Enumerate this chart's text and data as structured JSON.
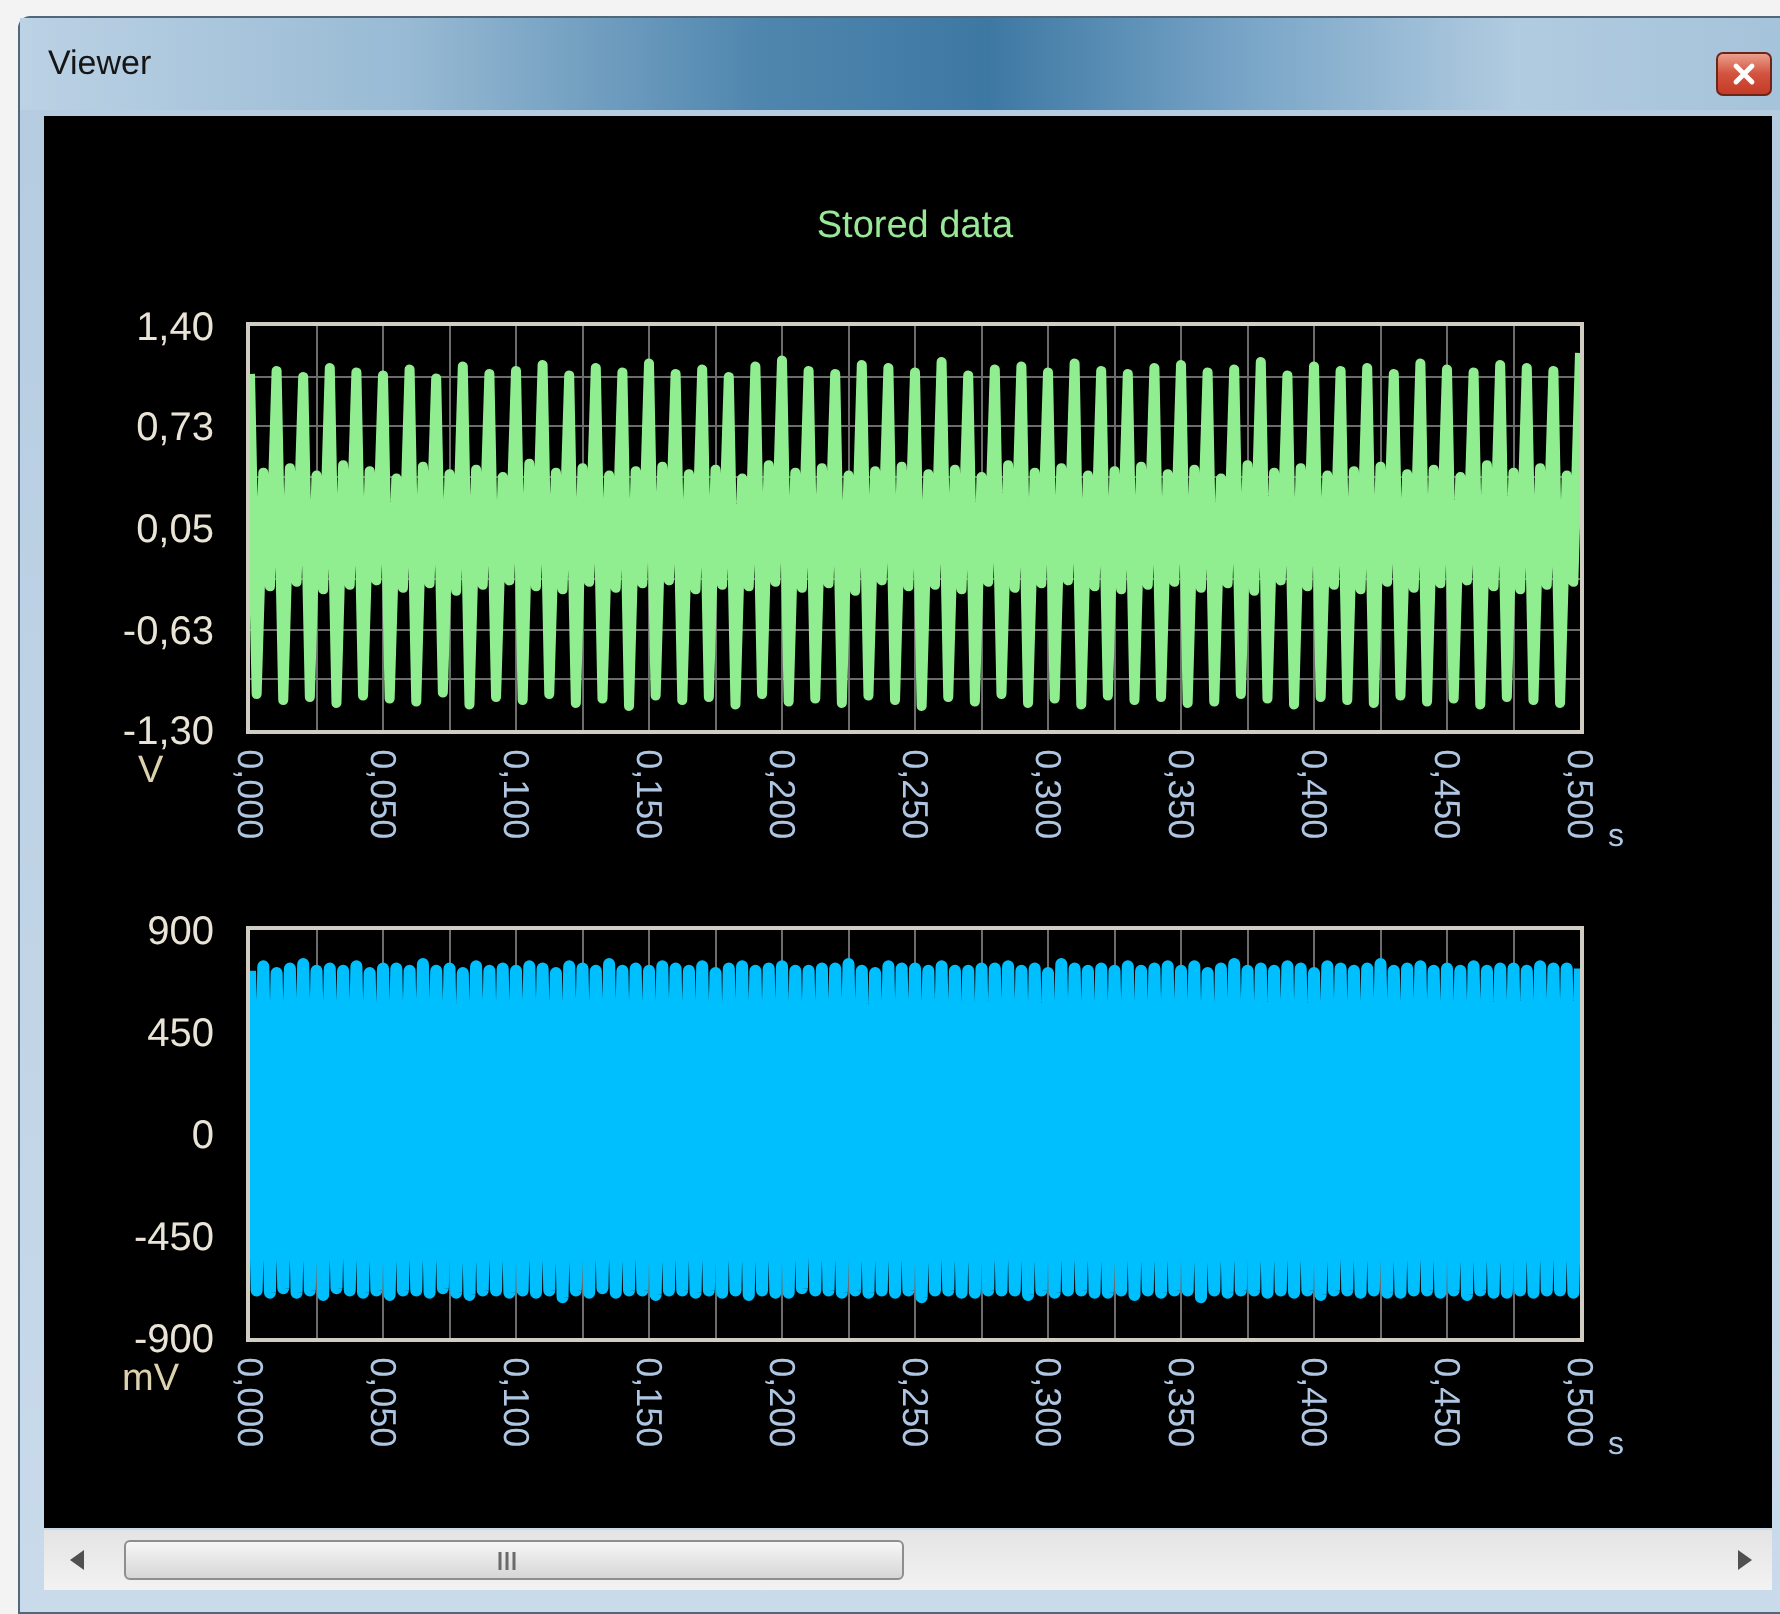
{
  "chart_data": [
    {
      "type": "line",
      "title": "Stored data",
      "annotations": [
        "Viewer"
      ],
      "xlabel": "s",
      "ylabel": "V",
      "grid": true,
      "xlim": [
        0,
        0.5
      ],
      "ylim": [
        -1.3,
        1.4
      ],
      "xticks": [
        {
          "value": 0,
          "label": "0,000"
        },
        {
          "value": 0.025,
          "label": null
        },
        {
          "value": 0.05,
          "label": "0,050"
        },
        {
          "value": 0.075,
          "label": null
        },
        {
          "value": 0.1,
          "label": "0,100"
        },
        {
          "value": 0.125,
          "label": null
        },
        {
          "value": 0.15,
          "label": "0,150"
        },
        {
          "value": 0.175,
          "label": null
        },
        {
          "value": 0.2,
          "label": "0,200"
        },
        {
          "value": 0.225,
          "label": null
        },
        {
          "value": 0.25,
          "label": "0,250"
        },
        {
          "value": 0.275,
          "label": null
        },
        {
          "value": 0.3,
          "label": "0,300"
        },
        {
          "value": 0.325,
          "label": null
        },
        {
          "value": 0.35,
          "label": "0,350"
        },
        {
          "value": 0.375,
          "label": null
        },
        {
          "value": 0.4,
          "label": "0,400"
        },
        {
          "value": 0.425,
          "label": null
        },
        {
          "value": 0.45,
          "label": "0,450"
        },
        {
          "value": 0.475,
          "label": null
        },
        {
          "value": 0.5,
          "label": "0,500"
        }
      ],
      "yticks": [
        {
          "value": 1.4,
          "label": "1,40"
        },
        {
          "value": 1.06,
          "label": null
        },
        {
          "value": 0.73,
          "label": "0,73"
        },
        {
          "value": 0.39,
          "label": null
        },
        {
          "value": 0.05,
          "label": "0,05"
        },
        {
          "value": -0.29,
          "label": null
        },
        {
          "value": -0.63,
          "label": "-0,63"
        },
        {
          "value": -0.96,
          "label": null
        },
        {
          "value": -1.3,
          "label": "-1,30"
        }
      ],
      "x": [
        0,
        0.0025,
        0.005,
        0.0075,
        0.01,
        0.0125,
        0.015,
        0.0175,
        0.02,
        0.0225,
        0.025,
        0.0275,
        0.03,
        0.0325,
        0.035,
        0.0375,
        0.04,
        0.0425,
        0.045,
        0.0475,
        0.05,
        0.0525,
        0.055,
        0.0575,
        0.06,
        0.0625,
        0.065,
        0.0675,
        0.07,
        0.0725,
        0.075,
        0.0775,
        0.08,
        0.0825,
        0.085,
        0.0875,
        0.09,
        0.0925,
        0.095,
        0.0975,
        0.1,
        0.1025,
        0.105,
        0.1075,
        0.11,
        0.1125,
        0.115,
        0.1175,
        0.12,
        0.1225,
        0.125,
        0.1275,
        0.13,
        0.1325,
        0.135,
        0.1375,
        0.14,
        0.1425,
        0.145,
        0.1475,
        0.15,
        0.1525,
        0.155,
        0.1575,
        0.16,
        0.1625,
        0.165,
        0.1675,
        0.17,
        0.1725,
        0.175,
        0.1775,
        0.18,
        0.1825,
        0.185,
        0.1875,
        0.19,
        0.1925,
        0.195,
        0.1975,
        0.2,
        0.2025,
        0.205,
        0.2075,
        0.21,
        0.2125,
        0.215,
        0.2175,
        0.22,
        0.2225,
        0.225,
        0.2275,
        0.23,
        0.2325,
        0.235,
        0.2375,
        0.24,
        0.2425,
        0.245,
        0.2475,
        0.25,
        0.2525,
        0.255,
        0.2575,
        0.26,
        0.2625,
        0.265,
        0.2675,
        0.27,
        0.2725,
        0.275,
        0.2775,
        0.28,
        0.2825,
        0.285,
        0.2875,
        0.29,
        0.2925,
        0.295,
        0.2975,
        0.3,
        0.3025,
        0.305,
        0.3075,
        0.31,
        0.3125,
        0.315,
        0.3175,
        0.32,
        0.3225,
        0.325,
        0.3275,
        0.33,
        0.3325,
        0.335,
        0.3375,
        0.34,
        0.3425,
        0.345,
        0.3475,
        0.35,
        0.3525,
        0.355,
        0.3575,
        0.36,
        0.3625,
        0.365,
        0.3675,
        0.37,
        0.3725,
        0.375,
        0.3775,
        0.38,
        0.3825,
        0.385,
        0.3875,
        0.39,
        0.3925,
        0.395,
        0.3975,
        0.4,
        0.4025,
        0.405,
        0.4075,
        0.41,
        0.4125,
        0.415,
        0.4175,
        0.42,
        0.4225,
        0.425,
        0.4275,
        0.43,
        0.4325,
        0.435,
        0.4375,
        0.44,
        0.4425,
        0.445,
        0.4475,
        0.45,
        0.4525,
        0.455,
        0.4575,
        0.46,
        0.4625,
        0.465,
        0.4675,
        0.47,
        0.4725,
        0.475,
        0.4775,
        0.48,
        0.4825,
        0.485,
        0.4875,
        0.49,
        0.4925,
        0.495,
        0.4975,
        0.5
      ],
      "series": [
        {
          "color": "#90ee90",
          "values": [
            1.08,
            -1.06,
            0.42,
            -0.34,
            1.1,
            -1.1,
            0.45,
            -0.31,
            1.06,
            -1.08,
            0.4,
            -0.36,
            1.12,
            -1.12,
            0.47,
            -0.33,
            1.09,
            -1.07,
            0.43,
            -0.3,
            1.07,
            -1.09,
            0.38,
            -0.35,
            1.11,
            -1.11,
            0.46,
            -0.32,
            1.05,
            -1.05,
            0.41,
            -0.37,
            1.13,
            -1.13,
            0.44,
            -0.33,
            1.08,
            -1.08,
            0.39,
            -0.3,
            1.1,
            -1.1,
            0.48,
            -0.34,
            1.14,
            -1.06,
            0.42,
            -0.36,
            1.07,
            -1.12,
            0.45,
            -0.31,
            1.12,
            -1.09,
            0.4,
            -0.35,
            1.09,
            -1.14,
            0.43,
            -0.32,
            1.15,
            -1.07,
            0.46,
            -0.3,
            1.08,
            -1.1,
            0.41,
            -0.36,
            1.11,
            -1.08,
            0.44,
            -0.33,
            1.06,
            -1.13,
            0.38,
            -0.34,
            1.13,
            -1.06,
            0.47,
            -0.31,
            1.17,
            -1.11,
            0.42,
            -0.35,
            1.1,
            -1.09,
            0.45,
            -0.32,
            1.08,
            -1.12,
            0.4,
            -0.37,
            1.14,
            -1.07,
            0.43,
            -0.3,
            1.12,
            -1.1,
            0.46,
            -0.34,
            1.09,
            -1.14,
            0.41,
            -0.33,
            1.16,
            -1.08,
            0.44,
            -0.36,
            1.07,
            -1.11,
            0.39,
            -0.31,
            1.11,
            -1.06,
            0.47,
            -0.35,
            1.13,
            -1.12,
            0.42,
            -0.32,
            1.09,
            -1.09,
            0.45,
            -0.3,
            1.15,
            -1.13,
            0.4,
            -0.34,
            1.1,
            -1.07,
            0.43,
            -0.36,
            1.08,
            -1.1,
            0.46,
            -0.33,
            1.12,
            -1.08,
            0.41,
            -0.31,
            1.14,
            -1.12,
            0.44,
            -0.35,
            1.09,
            -1.11,
            0.38,
            -0.32,
            1.11,
            -1.06,
            0.47,
            -0.37,
            1.16,
            -1.09,
            0.42,
            -0.3,
            1.07,
            -1.13,
            0.45,
            -0.34,
            1.13,
            -1.08,
            0.4,
            -0.33,
            1.1,
            -1.1,
            0.43,
            -0.36,
            1.12,
            -1.12,
            0.46,
            -0.31,
            1.08,
            -1.07,
            0.41,
            -0.35,
            1.15,
            -1.11,
            0.44,
            -0.32,
            1.11,
            -1.09,
            0.39,
            -0.3,
            1.09,
            -1.13,
            0.47,
            -0.34,
            1.14,
            -1.08,
            0.42,
            -0.36,
            1.12,
            -1.1,
            0.45,
            -0.33,
            1.1,
            -1.12,
            0.4,
            -0.31,
            1.22
          ]
        }
      ]
    },
    {
      "type": "line",
      "xlabel": "s",
      "ylabel": "mV",
      "grid": "x",
      "xlim": [
        0,
        0.5
      ],
      "ylim": [
        -900,
        900
      ],
      "xticks": [
        {
          "value": 0,
          "label": "0,000"
        },
        {
          "value": 0.025,
          "label": null
        },
        {
          "value": 0.05,
          "label": "0,050"
        },
        {
          "value": 0.075,
          "label": null
        },
        {
          "value": 0.1,
          "label": "0,100"
        },
        {
          "value": 0.125,
          "label": null
        },
        {
          "value": 0.15,
          "label": "0,150"
        },
        {
          "value": 0.175,
          "label": null
        },
        {
          "value": 0.2,
          "label": "0,200"
        },
        {
          "value": 0.225,
          "label": null
        },
        {
          "value": 0.25,
          "label": "0,250"
        },
        {
          "value": 0.275,
          "label": null
        },
        {
          "value": 0.3,
          "label": "0,300"
        },
        {
          "value": 0.325,
          "label": null
        },
        {
          "value": 0.35,
          "label": "0,350"
        },
        {
          "value": 0.375,
          "label": null
        },
        {
          "value": 0.4,
          "label": "0,400"
        },
        {
          "value": 0.425,
          "label": null
        },
        {
          "value": 0.45,
          "label": "0,450"
        },
        {
          "value": 0.475,
          "label": null
        },
        {
          "value": 0.5,
          "label": "0,500"
        }
      ],
      "yticks": [
        900,
        450,
        0,
        -450,
        -900
      ],
      "x": [
        0,
        0.0025,
        0.005,
        0.0075,
        0.01,
        0.0125,
        0.015,
        0.0175,
        0.02,
        0.0225,
        0.025,
        0.0275,
        0.03,
        0.0325,
        0.035,
        0.0375,
        0.04,
        0.0425,
        0.045,
        0.0475,
        0.05,
        0.0525,
        0.055,
        0.0575,
        0.06,
        0.0625,
        0.065,
        0.0675,
        0.07,
        0.0725,
        0.075,
        0.0775,
        0.08,
        0.0825,
        0.085,
        0.0875,
        0.09,
        0.0925,
        0.095,
        0.0975,
        0.1,
        0.1025,
        0.105,
        0.1075,
        0.11,
        0.1125,
        0.115,
        0.1175,
        0.12,
        0.1225,
        0.125,
        0.1275,
        0.13,
        0.1325,
        0.135,
        0.1375,
        0.14,
        0.1425,
        0.145,
        0.1475,
        0.15,
        0.1525,
        0.155,
        0.1575,
        0.16,
        0.1625,
        0.165,
        0.1675,
        0.17,
        0.1725,
        0.175,
        0.1775,
        0.18,
        0.1825,
        0.185,
        0.1875,
        0.19,
        0.1925,
        0.195,
        0.1975,
        0.2,
        0.2025,
        0.205,
        0.2075,
        0.21,
        0.2125,
        0.215,
        0.2175,
        0.22,
        0.2225,
        0.225,
        0.2275,
        0.23,
        0.2325,
        0.235,
        0.2375,
        0.24,
        0.2425,
        0.245,
        0.2475,
        0.25,
        0.2525,
        0.255,
        0.2575,
        0.26,
        0.2625,
        0.265,
        0.2675,
        0.27,
        0.2725,
        0.275,
        0.2775,
        0.28,
        0.2825,
        0.285,
        0.2875,
        0.29,
        0.2925,
        0.295,
        0.2975,
        0.3,
        0.3025,
        0.305,
        0.3075,
        0.31,
        0.3125,
        0.315,
        0.3175,
        0.32,
        0.3225,
        0.325,
        0.3275,
        0.33,
        0.3325,
        0.335,
        0.3375,
        0.34,
        0.3425,
        0.345,
        0.3475,
        0.35,
        0.3525,
        0.355,
        0.3575,
        0.36,
        0.3625,
        0.365,
        0.3675,
        0.37,
        0.3725,
        0.375,
        0.3775,
        0.38,
        0.3825,
        0.385,
        0.3875,
        0.39,
        0.3925,
        0.395,
        0.3975,
        0.4,
        0.4025,
        0.405,
        0.4075,
        0.41,
        0.4125,
        0.415,
        0.4175,
        0.42,
        0.4225,
        0.425,
        0.4275,
        0.43,
        0.4325,
        0.435,
        0.4375,
        0.44,
        0.4425,
        0.445,
        0.4475,
        0.45,
        0.4525,
        0.455,
        0.4575,
        0.46,
        0.4625,
        0.465,
        0.4675,
        0.47,
        0.4725,
        0.475,
        0.4775,
        0.48,
        0.4825,
        0.485,
        0.4875,
        0.49,
        0.4925,
        0.495,
        0.4975,
        0.5
      ],
      "series": [
        {
          "color": "#00bfff",
          "values": [
            720,
            -690,
            740,
            -700,
            710,
            -680,
            730,
            -700,
            750,
            -690,
            720,
            -710,
            730,
            -680,
            720,
            -690,
            740,
            -700,
            710,
            -690,
            730,
            -710,
            730,
            -690,
            720,
            -690,
            750,
            -700,
            720,
            -680,
            730,
            -700,
            710,
            -710,
            740,
            -690,
            720,
            -690,
            730,
            -700,
            720,
            -690,
            740,
            -700,
            730,
            -690,
            710,
            -720,
            740,
            -690,
            730,
            -700,
            720,
            -680,
            750,
            -700,
            720,
            -690,
            730,
            -690,
            720,
            -710,
            740,
            -690,
            730,
            -690,
            720,
            -700,
            740,
            -690,
            710,
            -700,
            730,
            -690,
            740,
            -710,
            720,
            -690,
            730,
            -700,
            740,
            -700,
            720,
            -680,
            720,
            -690,
            730,
            -690,
            730,
            -700,
            750,
            -690,
            720,
            -700,
            710,
            -690,
            740,
            -700,
            730,
            -690,
            730,
            -720,
            720,
            -690,
            740,
            -690,
            720,
            -700,
            720,
            -700,
            730,
            -690,
            730,
            -690,
            740,
            -690,
            720,
            -710,
            730,
            -690,
            710,
            -700,
            750,
            -690,
            730,
            -690,
            720,
            -700,
            730,
            -700,
            720,
            -690,
            740,
            -710,
            720,
            -690,
            730,
            -700,
            740,
            -690,
            720,
            -690,
            740,
            -720,
            710,
            -690,
            730,
            -700,
            750,
            -690,
            720,
            -690,
            730,
            -700,
            720,
            -690,
            740,
            -700,
            730,
            -690,
            710,
            -710,
            740,
            -690,
            730,
            -690,
            720,
            -700,
            730,
            -690,
            750,
            -700,
            720,
            -700,
            730,
            -690,
            740,
            -690,
            720,
            -700,
            730,
            -690,
            720,
            -710,
            740,
            -690,
            720,
            -700,
            730,
            -700,
            730,
            -690,
            720,
            -700,
            740,
            -690,
            730,
            -690,
            730,
            -700,
            730
          ]
        }
      ]
    }
  ]
}
